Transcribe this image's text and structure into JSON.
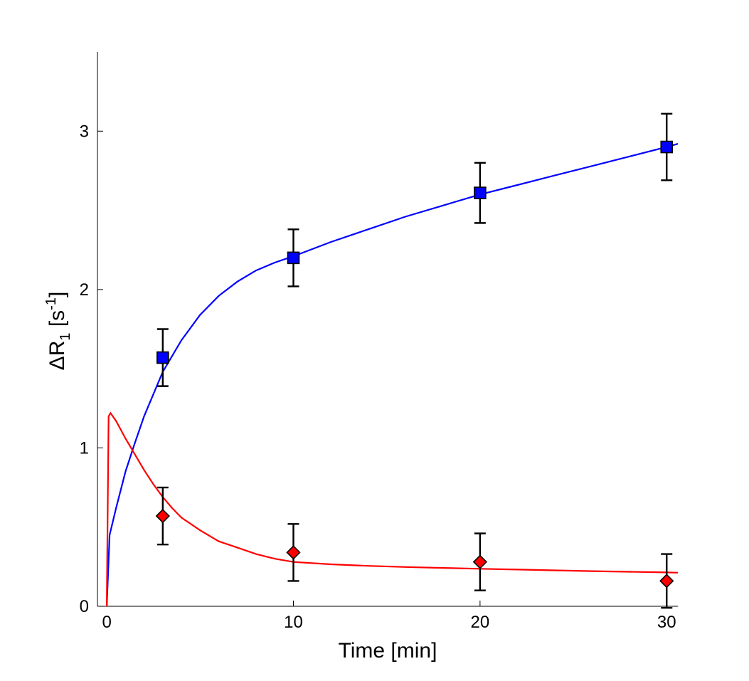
{
  "chart_data": {
    "type": "scatter",
    "title": "",
    "xlabel": "Time [min]",
    "ylabel": {
      "main": "ΔR",
      "sub": "1",
      "unit_open": " [s",
      "sup": "-1",
      "unit_close": "]"
    },
    "xlim": [
      -0.5,
      30.6
    ],
    "ylim": [
      0,
      3.5
    ],
    "xticks": [
      0,
      10,
      20,
      30
    ],
    "yticks": [
      0,
      1,
      2,
      3
    ],
    "grid": false,
    "legend": "none",
    "series": [
      {
        "name": "blue-series",
        "color": "#0000ff",
        "marker": "square",
        "points": [
          {
            "x": 3,
            "y": 1.57,
            "err": 0.18
          },
          {
            "x": 10,
            "y": 2.2,
            "err": 0.18
          },
          {
            "x": 20,
            "y": 2.61,
            "err": 0.19
          },
          {
            "x": 30,
            "y": 2.9,
            "err": 0.21
          }
        ],
        "fit": [
          [
            0,
            0.0
          ],
          [
            0.15,
            0.45
          ],
          [
            0.5,
            0.62
          ],
          [
            1,
            0.85
          ],
          [
            1.5,
            1.03
          ],
          [
            2,
            1.2
          ],
          [
            3,
            1.48
          ],
          [
            4,
            1.68
          ],
          [
            5,
            1.84
          ],
          [
            6,
            1.96
          ],
          [
            7,
            2.05
          ],
          [
            8,
            2.12
          ],
          [
            9,
            2.17
          ],
          [
            10,
            2.21
          ],
          [
            12,
            2.3
          ],
          [
            14,
            2.38
          ],
          [
            16,
            2.46
          ],
          [
            18,
            2.53
          ],
          [
            20,
            2.6
          ],
          [
            22,
            2.66
          ],
          [
            24,
            2.72
          ],
          [
            26,
            2.78
          ],
          [
            28,
            2.84
          ],
          [
            30,
            2.9
          ],
          [
            30.6,
            2.92
          ]
        ]
      },
      {
        "name": "red-series",
        "color": "#ff0000",
        "marker": "diamond",
        "points": [
          {
            "x": 3,
            "y": 0.57,
            "err": 0.18
          },
          {
            "x": 10,
            "y": 0.34,
            "err": 0.18
          },
          {
            "x": 20,
            "y": 0.28,
            "err": 0.18
          },
          {
            "x": 30,
            "y": 0.16,
            "err": 0.17
          }
        ],
        "fit": [
          [
            0,
            0.0
          ],
          [
            0.1,
            1.2
          ],
          [
            0.2,
            1.22
          ],
          [
            0.5,
            1.17
          ],
          [
            1,
            1.06
          ],
          [
            1.5,
            0.96
          ],
          [
            2,
            0.86
          ],
          [
            2.5,
            0.77
          ],
          [
            3,
            0.69
          ],
          [
            3.5,
            0.62
          ],
          [
            4,
            0.56
          ],
          [
            5,
            0.48
          ],
          [
            6,
            0.41
          ],
          [
            7,
            0.37
          ],
          [
            8,
            0.33
          ],
          [
            9,
            0.3
          ],
          [
            10,
            0.28
          ],
          [
            12,
            0.265
          ],
          [
            14,
            0.255
          ],
          [
            16,
            0.248
          ],
          [
            18,
            0.242
          ],
          [
            20,
            0.237
          ],
          [
            22,
            0.232
          ],
          [
            24,
            0.227
          ],
          [
            26,
            0.222
          ],
          [
            28,
            0.218
          ],
          [
            30,
            0.214
          ],
          [
            30.6,
            0.212
          ]
        ]
      }
    ]
  }
}
